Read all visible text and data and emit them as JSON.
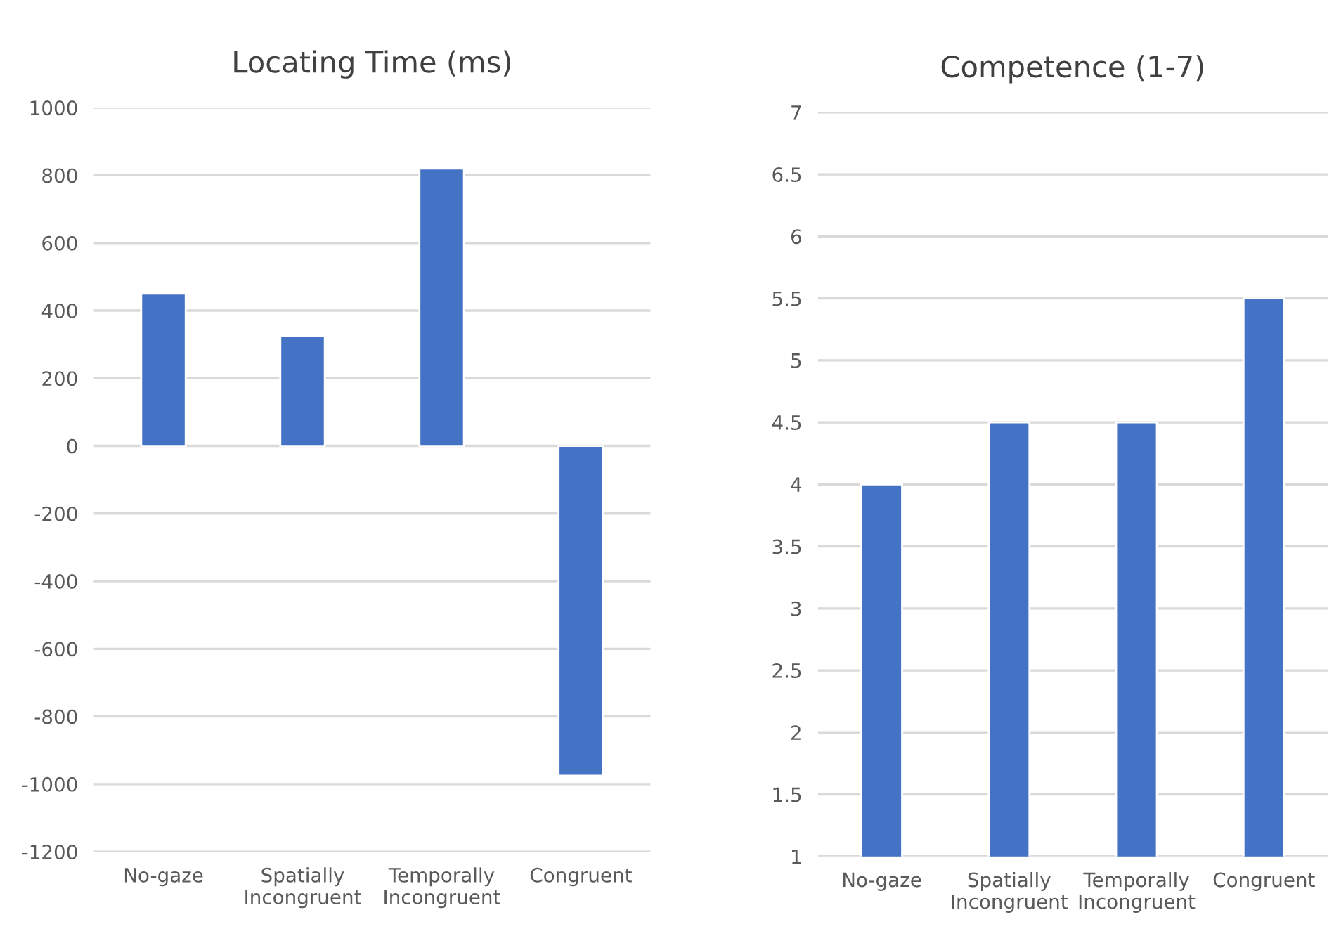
{
  "chart_data": [
    {
      "type": "bar",
      "title": "Locating Time (ms)",
      "categories": [
        "No-gaze",
        "Spatially Incongruent",
        "Temporally Incongruent",
        "Congruent"
      ],
      "values": [
        450,
        325,
        820,
        -975
      ],
      "color": "#4472c4",
      "ylim": [
        -1200,
        1000
      ],
      "yticks": [
        -1200,
        -1000,
        -800,
        -600,
        -400,
        -200,
        0,
        200,
        400,
        600,
        800,
        1000
      ],
      "grid": "y"
    },
    {
      "type": "bar",
      "title": "Competence (1-7)",
      "categories": [
        "No-gaze",
        "Spatially Incongruent",
        "Temporally Incongruent",
        "Congruent"
      ],
      "values": [
        4,
        4.5,
        4.5,
        5.5
      ],
      "color": "#4472c4",
      "ylim": [
        1,
        7
      ],
      "yticks": [
        1,
        1.5,
        2,
        2.5,
        3,
        3.5,
        4,
        4.5,
        5,
        5.5,
        6,
        6.5,
        7
      ],
      "grid": "y"
    }
  ]
}
